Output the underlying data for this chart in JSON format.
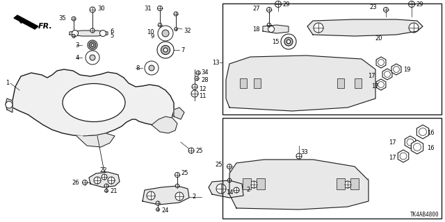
{
  "bg_color": "#ffffff",
  "diagram_code": "TK4AB4800",
  "fig_width": 6.4,
  "fig_height": 3.2,
  "dpi": 100,
  "line_color": "#1a1a1a",
  "label_color": "#000000",
  "fs": 6.0
}
